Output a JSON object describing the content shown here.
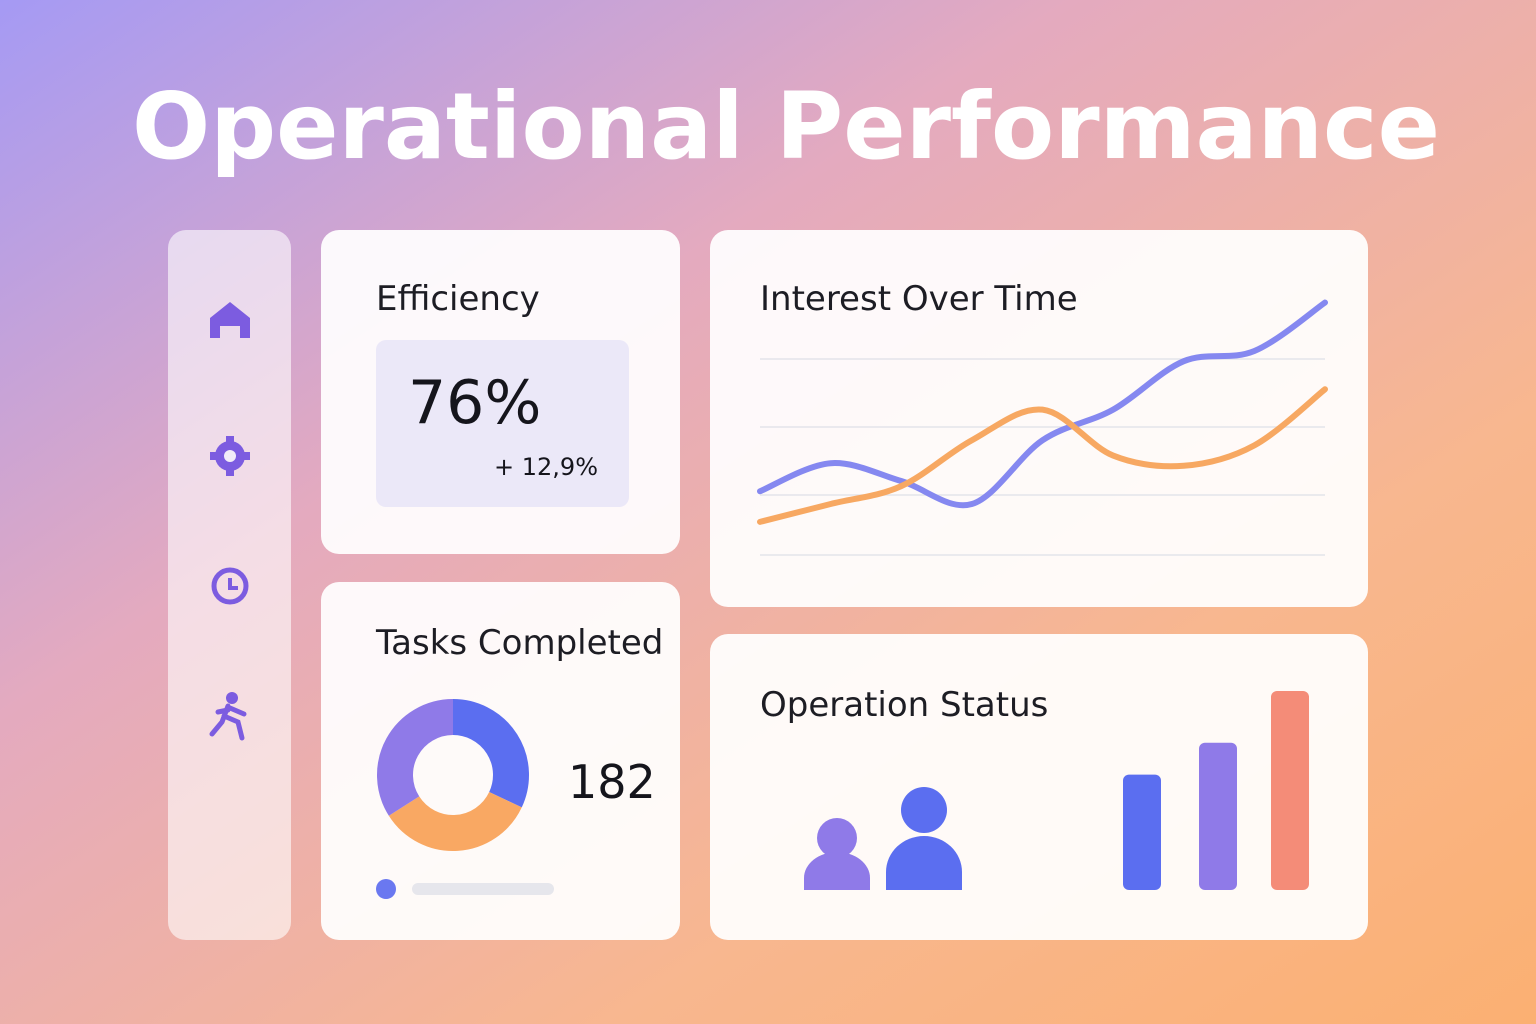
{
  "header": {
    "title": "Operational Performance"
  },
  "efficiency": {
    "title": "Efficiency",
    "value": "76%",
    "change": "+ 12,9%"
  },
  "tasks": {
    "count": "182"
  },
  "chart_data": [
    {
      "type": "line",
      "title": "Interest Over Time",
      "categories": [
        null,
        null,
        null,
        null,
        null,
        null,
        null,
        null,
        null
      ],
      "ylim": [
        0,
        100
      ],
      "series": [
        {
          "color": "#8588f0",
          "values": [
            25,
            36,
            29,
            20,
            45,
            57,
            76,
            80,
            99
          ]
        },
        {
          "color": "#f7a862",
          "values": [
            13,
            20,
            27,
            45,
            57,
            39,
            35,
            43,
            65
          ]
        }
      ]
    },
    {
      "type": "pie",
      "title": "Tasks Completed",
      "values": [
        32,
        34,
        34
      ],
      "colors": [
        "#5b6ef0",
        "#f9a863",
        "#8f7ae8"
      ]
    },
    {
      "type": "bar",
      "title": "Operation Status",
      "ylim": [
        0,
        100
      ],
      "values": [
        58,
        74,
        100
      ],
      "colors": [
        "#5b6ef0",
        "#8f7ae8",
        "#f48c78"
      ]
    }
  ]
}
